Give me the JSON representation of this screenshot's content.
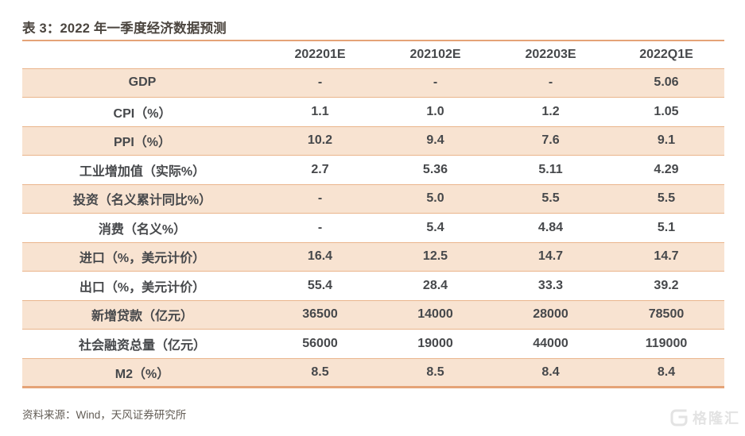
{
  "title": "表 3：2022 年一季度经济数据预测",
  "chart_data": {
    "type": "table",
    "title": "表 3：2022 年一季度经济数据预测",
    "columns": [
      "",
      "202201E",
      "202102E",
      "202203E",
      "2022Q1E"
    ],
    "highlight_column": "2022Q1E",
    "rows": [
      {
        "label": "GDP",
        "values": [
          "-",
          "-",
          "-",
          "5.06"
        ]
      },
      {
        "label": "CPI（%）",
        "values": [
          "1.1",
          "1.0",
          "1.2",
          "1.05"
        ]
      },
      {
        "label": "PPI（%）",
        "values": [
          "10.2",
          "9.4",
          "7.6",
          "9.1"
        ]
      },
      {
        "label": "工业增加值（实际%）",
        "values": [
          "2.7",
          "5.36",
          "5.11",
          "4.29"
        ]
      },
      {
        "label": "投资（名义累计同比%）",
        "values": [
          "-",
          "5.0",
          "5.5",
          "5.5"
        ]
      },
      {
        "label": "消费（名义%）",
        "values": [
          "-",
          "5.4",
          "4.84",
          "5.1"
        ]
      },
      {
        "label": "进口（%，美元计价）",
        "values": [
          "16.4",
          "12.5",
          "14.7",
          "14.7"
        ]
      },
      {
        "label": "出口（%，美元计价）",
        "values": [
          "55.4",
          "28.4",
          "33.3",
          "39.2"
        ]
      },
      {
        "label": "新增贷款（亿元）",
        "values": [
          "36500",
          "14000",
          "28000",
          "78500"
        ]
      },
      {
        "label": "社会融资总量（亿元）",
        "values": [
          "56000",
          "19000",
          "44000",
          "119000"
        ]
      },
      {
        "label": "M2（%）",
        "values": [
          "8.5",
          "8.5",
          "8.4",
          "8.4"
        ]
      }
    ]
  },
  "footer": {
    "source": "资料来源：Wind，天风证券研究所"
  },
  "watermark": {
    "text": "格隆汇"
  },
  "colors": {
    "accent_orange": "#e5a377",
    "row_line_orange": "#eab58c",
    "row_stripe_peach": "#f8e3d1",
    "highlight_red": "#e42421",
    "text_dark": "#46484b",
    "title_dark": "#4b453f",
    "source_gray": "#625c55",
    "watermark_gray": "#e3e3e3"
  }
}
